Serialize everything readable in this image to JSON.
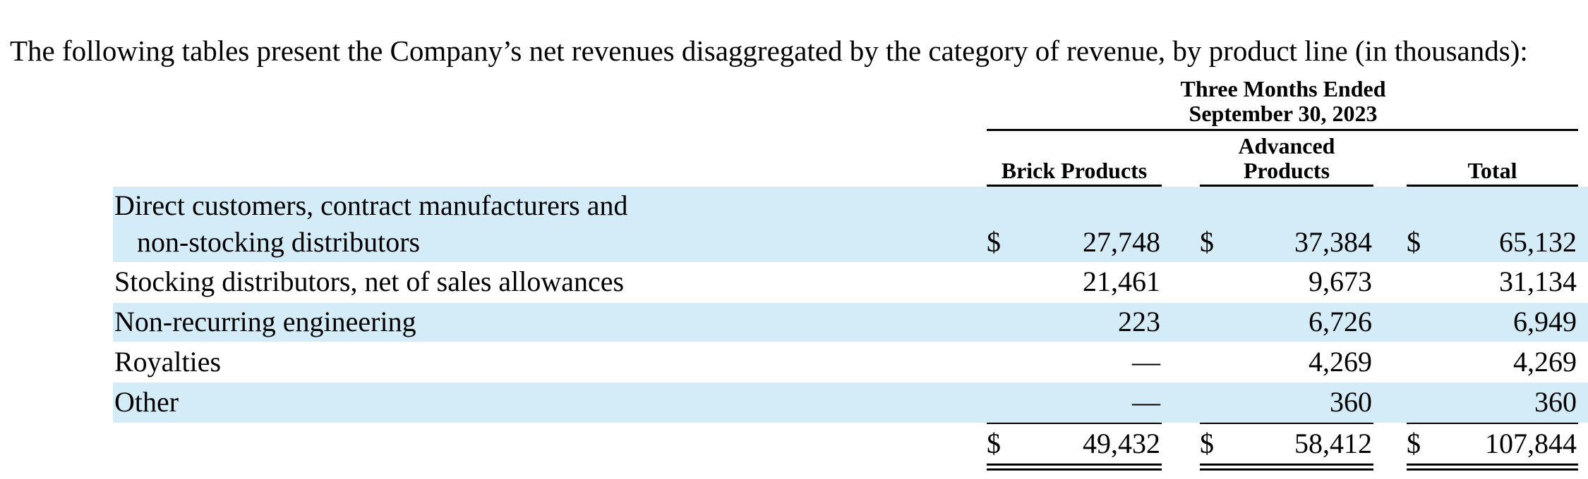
{
  "intro": "The following tables present the Company’s net revenues disaggregated by the category of revenue, by product line (in thousands):",
  "table": {
    "period_line1": "Three Months Ended",
    "period_line2": "September 30, 2023",
    "columns": {
      "brick": "Brick Products",
      "advanced_line1": "Advanced",
      "advanced_line2": "Products",
      "total": "Total"
    },
    "currency_symbol": "$",
    "rows": [
      {
        "label_line1": "Direct customers, contract manufacturers and",
        "label_line2": "non-stocking distributors",
        "brick": "27,748",
        "advanced": "37,384",
        "total": "65,132"
      },
      {
        "label": "Stocking distributors, net of sales allowances",
        "brick": "21,461",
        "advanced": "9,673",
        "total": "31,134"
      },
      {
        "label": "Non-recurring engineering",
        "brick": "223",
        "advanced": "6,726",
        "total": "6,949"
      },
      {
        "label": "Royalties",
        "brick": "—",
        "advanced": "4,269",
        "total": "4,269"
      },
      {
        "label": "Other",
        "brick": "—",
        "advanced": "360",
        "total": "360"
      }
    ],
    "totals": {
      "brick": "49,432",
      "advanced": "58,412",
      "total": "107,844"
    }
  }
}
